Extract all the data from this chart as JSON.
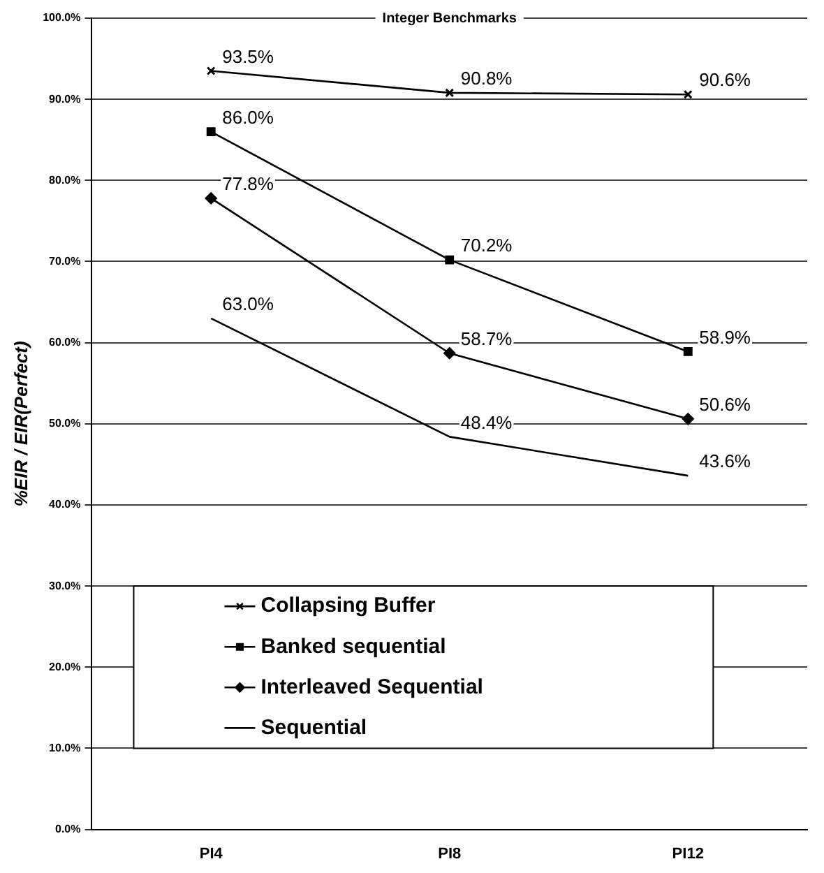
{
  "chart_data": {
    "type": "line",
    "title": "Integer Benchmarks",
    "ylabel": "%EIR / EIR(Perfect)",
    "categories": [
      "PI4",
      "PI8",
      "PI12"
    ],
    "series": [
      {
        "name": "Collapsing Buffer",
        "color": "#000000",
        "marker": "cross",
        "values": [
          93.5,
          90.8,
          90.6
        ],
        "value_labels": [
          "93.5%",
          "90.8%",
          "90.6%"
        ]
      },
      {
        "name": "Banked sequential",
        "color": "#000000",
        "marker": "square",
        "values": [
          86.0,
          70.2,
          58.9
        ],
        "value_labels": [
          "86.0%",
          "70.2%",
          "58.9%"
        ]
      },
      {
        "name": "Interleaved Sequential",
        "color": "#000000",
        "marker": "diamond",
        "values": [
          77.8,
          58.7,
          50.6
        ],
        "value_labels": [
          "77.8%",
          "58.7%",
          "50.6%"
        ]
      },
      {
        "name": "Sequential",
        "color": "#000000",
        "marker": "none",
        "values": [
          63.0,
          48.4,
          43.6
        ],
        "value_labels": [
          "63.0%",
          "48.4%",
          "43.6%"
        ]
      }
    ],
    "ylim": [
      0,
      100
    ],
    "yticks": [
      {
        "value": 0,
        "label": "0.0%"
      },
      {
        "value": 10,
        "label": "10.0%"
      },
      {
        "value": 20,
        "label": "20.0%"
      },
      {
        "value": 30,
        "label": "30.0%"
      },
      {
        "value": 40,
        "label": "40.0%"
      },
      {
        "value": 50,
        "label": "50.0%"
      },
      {
        "value": 60,
        "label": "60.0%"
      },
      {
        "value": 70,
        "label": "70.0%"
      },
      {
        "value": 80,
        "label": "80.0%"
      },
      {
        "value": 90,
        "label": "90.0%"
      },
      {
        "value": 100,
        "label": "100.0%"
      }
    ],
    "grid": "y",
    "legend": "bottom"
  }
}
